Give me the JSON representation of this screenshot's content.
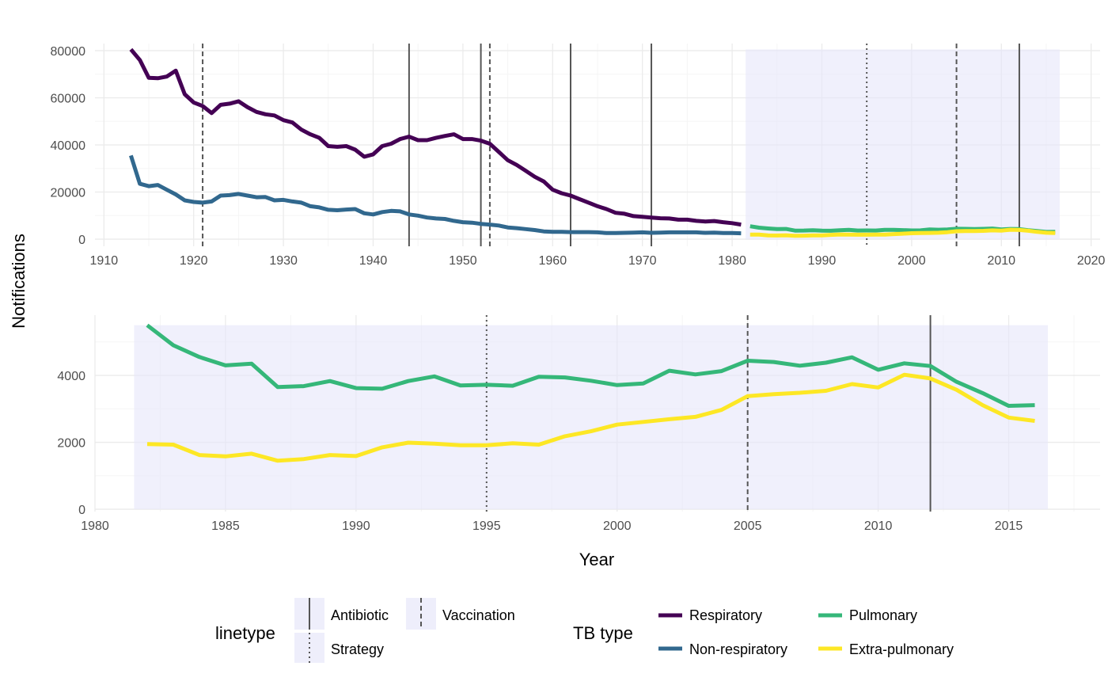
{
  "chart_data": [
    {
      "type": "line",
      "xlim": [
        1909,
        2021
      ],
      "ylim": [
        -3000,
        83000
      ],
      "x_ticks": [
        1910,
        1920,
        1930,
        1940,
        1950,
        1960,
        1970,
        1980,
        1990,
        2000,
        2010,
        2020
      ],
      "y_ticks": [
        0,
        20000,
        40000,
        60000,
        80000
      ],
      "grid": true,
      "shaded_region": {
        "x_range": [
          1981.5,
          2016.5
        ],
        "y_range": [
          0,
          80500
        ]
      },
      "series": [
        {
          "name": "Respiratory",
          "color": "#440154",
          "x": [
            1913,
            1914,
            1915,
            1916,
            1917,
            1918,
            1919,
            1920,
            1921,
            1922,
            1923,
            1924,
            1925,
            1926,
            1927,
            1928,
            1929,
            1930,
            1931,
            1932,
            1933,
            1934,
            1935,
            1936,
            1937,
            1938,
            1939,
            1940,
            1941,
            1942,
            1943,
            1944,
            1945,
            1946,
            1947,
            1948,
            1949,
            1950,
            1951,
            1952,
            1953,
            1954,
            1955,
            1956,
            1957,
            1958,
            1959,
            1960,
            1961,
            1962,
            1963,
            1964,
            1965,
            1966,
            1967,
            1968,
            1969,
            1970,
            1971,
            1972,
            1973,
            1974,
            1975,
            1976,
            1977,
            1978,
            1979,
            1980,
            1981
          ],
          "values": [
            80500,
            76000,
            68500,
            68300,
            69000,
            71500,
            61500,
            58000,
            56500,
            53500,
            57000,
            57500,
            58500,
            56000,
            54000,
            53000,
            52500,
            50500,
            49500,
            46500,
            44500,
            43000,
            39500,
            39200,
            39500,
            38000,
            35000,
            36000,
            39500,
            40500,
            42500,
            43500,
            42000,
            42000,
            43000,
            43800,
            44500,
            42500,
            42500,
            41800,
            40500,
            37000,
            33500,
            31500,
            29000,
            26500,
            24500,
            21000,
            19500,
            18500,
            17000,
            15500,
            14000,
            12800,
            11200,
            10800,
            9800,
            9500,
            9200,
            8900,
            8800,
            8300,
            8300,
            7800,
            7500,
            7700,
            7200,
            6800,
            6200
          ]
        },
        {
          "name": "Non-respiratory",
          "color": "#31688e",
          "x": [
            1913,
            1914,
            1915,
            1916,
            1917,
            1918,
            1919,
            1920,
            1921,
            1922,
            1923,
            1924,
            1925,
            1926,
            1927,
            1928,
            1929,
            1930,
            1931,
            1932,
            1933,
            1934,
            1935,
            1936,
            1937,
            1938,
            1939,
            1940,
            1941,
            1942,
            1943,
            1944,
            1945,
            1946,
            1947,
            1948,
            1949,
            1950,
            1951,
            1952,
            1953,
            1954,
            1955,
            1956,
            1957,
            1958,
            1959,
            1960,
            1961,
            1962,
            1963,
            1964,
            1965,
            1966,
            1967,
            1968,
            1969,
            1970,
            1971,
            1972,
            1973,
            1974,
            1975,
            1976,
            1977,
            1978,
            1979,
            1980,
            1981
          ],
          "values": [
            35500,
            23500,
            22500,
            23000,
            21000,
            19000,
            16500,
            15800,
            15500,
            16000,
            18500,
            18700,
            19200,
            18500,
            17800,
            17900,
            16500,
            16700,
            16000,
            15500,
            14000,
            13500,
            12500,
            12300,
            12600,
            12800,
            11000,
            10500,
            11500,
            12000,
            11800,
            10500,
            10000,
            9200,
            8800,
            8600,
            7800,
            7200,
            7000,
            6500,
            6200,
            5800,
            5000,
            4700,
            4300,
            3900,
            3300,
            3100,
            3100,
            3000,
            3000,
            3000,
            2900,
            2600,
            2600,
            2700,
            2800,
            2900,
            2700,
            2800,
            2900,
            2900,
            2900,
            2900,
            2700,
            2800,
            2600,
            2600,
            2500
          ]
        },
        {
          "name": "Pulmonary",
          "color": "#35b779",
          "x": [
            1982,
            1983,
            1984,
            1985,
            1986,
            1987,
            1988,
            1989,
            1990,
            1991,
            1992,
            1993,
            1994,
            1995,
            1996,
            1997,
            1998,
            1999,
            2000,
            2001,
            2002,
            2003,
            2004,
            2005,
            2006,
            2007,
            2008,
            2009,
            2010,
            2011,
            2012,
            2013,
            2014,
            2015,
            2016
          ],
          "values": [
            5500,
            4900,
            4550,
            4300,
            4350,
            3650,
            3680,
            3830,
            3620,
            3600,
            3830,
            3970,
            3700,
            3720,
            3690,
            3960,
            3940,
            3840,
            3710,
            3760,
            4140,
            4030,
            4130,
            4440,
            4400,
            4290,
            4380,
            4540,
            4170,
            4360,
            4280,
            3810,
            3470,
            3090,
            3110
          ]
        },
        {
          "name": "Extra-pulmonary",
          "color": "#fde725",
          "x": [
            1982,
            1983,
            1984,
            1985,
            1986,
            1987,
            1988,
            1989,
            1990,
            1991,
            1992,
            1993,
            1994,
            1995,
            1996,
            1997,
            1998,
            1999,
            2000,
            2001,
            2002,
            2003,
            2004,
            2005,
            2006,
            2007,
            2008,
            2009,
            2010,
            2011,
            2012,
            2013,
            2014,
            2015,
            2016
          ],
          "values": [
            1950,
            1930,
            1620,
            1580,
            1660,
            1450,
            1500,
            1620,
            1590,
            1850,
            1990,
            1960,
            1910,
            1910,
            1970,
            1930,
            2180,
            2330,
            2530,
            2610,
            2690,
            2760,
            2970,
            3380,
            3440,
            3480,
            3540,
            3740,
            3640,
            4020,
            3910,
            3570,
            3110,
            2740,
            2640
          ]
        }
      ],
      "vlines": [
        {
          "x": 1921,
          "type": "Vaccination"
        },
        {
          "x": 1944,
          "type": "Antibiotic"
        },
        {
          "x": 1952,
          "type": "Antibiotic"
        },
        {
          "x": 1953,
          "type": "Vaccination"
        },
        {
          "x": 1962,
          "type": "Antibiotic"
        },
        {
          "x": 1971,
          "type": "Antibiotic"
        },
        {
          "x": 1995,
          "type": "Strategy"
        },
        {
          "x": 2005,
          "type": "Vaccination"
        },
        {
          "x": 2012,
          "type": "Antibiotic"
        }
      ]
    },
    {
      "type": "line",
      "xlabel": "Year",
      "xlim": [
        1980,
        2018.5
      ],
      "ylim": [
        -70,
        5800
      ],
      "x_ticks": [
        1980,
        1985,
        1990,
        1995,
        2000,
        2005,
        2010,
        2015
      ],
      "y_ticks": [
        0,
        2000,
        4000
      ],
      "grid": true,
      "shaded_region": {
        "x_range": [
          1981.5,
          2016.5
        ],
        "y_range": [
          0,
          5500
        ]
      },
      "series_refs": [
        "Pulmonary",
        "Extra-pulmonary"
      ],
      "vlines": [
        {
          "x": 1995,
          "type": "Strategy"
        },
        {
          "x": 2005,
          "type": "Vaccination"
        },
        {
          "x": 2012,
          "type": "Antibiotic"
        }
      ]
    }
  ],
  "shared_ylabel": "Notifications",
  "legend": {
    "placement": "bottom",
    "linetype_title": "linetype",
    "linetype_items": [
      {
        "label": "Antibiotic",
        "dash": "solid"
      },
      {
        "label": "Vaccination",
        "dash": "dashed"
      },
      {
        "label": "Strategy",
        "dash": "dotted"
      }
    ],
    "color_title": "TB type",
    "color_items": [
      {
        "label": "Respiratory",
        "color": "#440154"
      },
      {
        "label": "Pulmonary",
        "color": "#35b779"
      },
      {
        "label": "Non-respiratory",
        "color": "#31688e"
      },
      {
        "label": "Extra-pulmonary",
        "color": "#fde725"
      }
    ]
  },
  "colors": {
    "panel_grid_major": "#ebebeb",
    "panel_grid_minor": "#f5f5f5",
    "shade": "#e6e6fa",
    "vline": "#555555"
  }
}
